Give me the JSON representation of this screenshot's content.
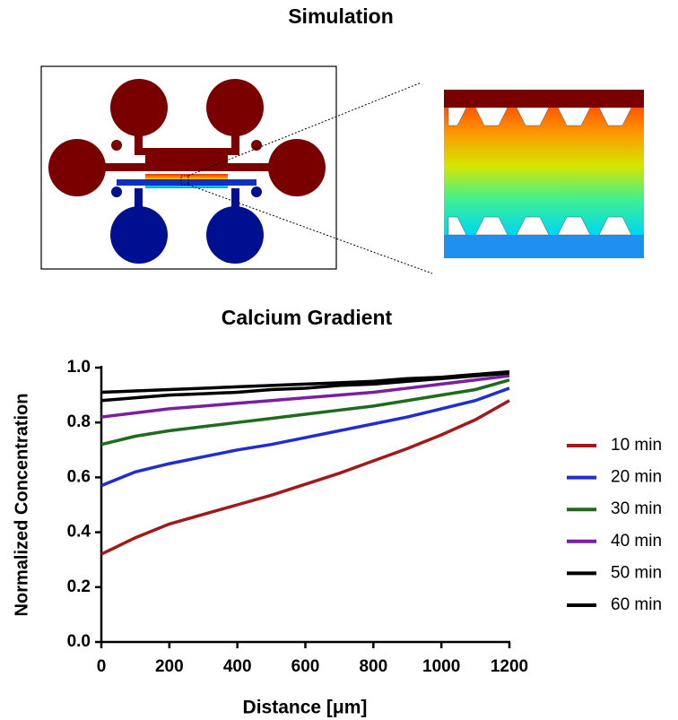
{
  "simulation_title": "Simulation",
  "chart_data": {
    "type": "line",
    "title": "Calcium Gradient",
    "x_label": "Distance [μm]",
    "y_label": "Normalized Concentration",
    "x": [
      0,
      100,
      200,
      300,
      400,
      500,
      600,
      700,
      800,
      900,
      1000,
      1100,
      1200
    ],
    "series": [
      {
        "name": "10 min",
        "color": "#a01a1a",
        "values": [
          0.32,
          0.38,
          0.43,
          0.465,
          0.5,
          0.535,
          0.575,
          0.615,
          0.66,
          0.705,
          0.755,
          0.81,
          0.88
        ]
      },
      {
        "name": "20 min",
        "color": "#1f2ecc",
        "values": [
          0.57,
          0.62,
          0.65,
          0.675,
          0.7,
          0.72,
          0.745,
          0.77,
          0.795,
          0.82,
          0.85,
          0.88,
          0.925
        ]
      },
      {
        "name": "30 min",
        "color": "#1e6b1e",
        "values": [
          0.72,
          0.75,
          0.77,
          0.785,
          0.8,
          0.815,
          0.83,
          0.845,
          0.86,
          0.88,
          0.9,
          0.92,
          0.955
        ]
      },
      {
        "name": "40 min",
        "color": "#7b1fa2",
        "values": [
          0.82,
          0.835,
          0.85,
          0.86,
          0.87,
          0.88,
          0.89,
          0.9,
          0.91,
          0.925,
          0.94,
          0.955,
          0.97
        ]
      },
      {
        "name": "50 min",
        "color": "#000000",
        "values": [
          0.88,
          0.89,
          0.9,
          0.905,
          0.91,
          0.92,
          0.925,
          0.935,
          0.94,
          0.95,
          0.96,
          0.97,
          0.98
        ]
      },
      {
        "name": "60 min",
        "color": "#000000",
        "values": [
          0.91,
          0.915,
          0.92,
          0.925,
          0.93,
          0.935,
          0.94,
          0.945,
          0.95,
          0.96,
          0.965,
          0.975,
          0.985
        ]
      }
    ],
    "xlim": [
      0,
      1200
    ],
    "xticks": [
      0,
      200,
      400,
      600,
      800,
      1000,
      1200
    ],
    "ylim": [
      0,
      1
    ],
    "yticks": [
      {
        "value": 0,
        "label": "0.0"
      },
      0.2,
      0.4,
      0.6,
      0.8,
      {
        "value": 1,
        "label": "1.0"
      }
    ],
    "grid": false,
    "legend": "right"
  }
}
